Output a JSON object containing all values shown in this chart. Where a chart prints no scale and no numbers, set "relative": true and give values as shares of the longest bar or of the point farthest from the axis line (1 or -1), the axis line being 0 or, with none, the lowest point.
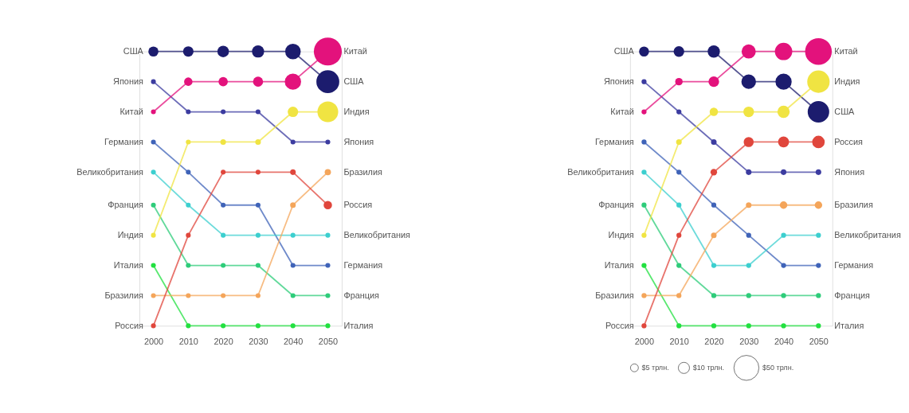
{
  "chart_data": [
    {
      "type": "bubble",
      "relative": true,
      "x": [
        2000,
        2010,
        2020,
        2030,
        2040,
        2050
      ],
      "xlim": [
        1996,
        2054
      ],
      "xticks": [
        2000,
        2010,
        2020,
        2030,
        2040,
        2050
      ],
      "series": [
        {
          "name": "США",
          "color": "#1c1c6e",
          "values": [
            1,
            1,
            1,
            1,
            1,
            0.89
          ],
          "sizes": [
            0.13,
            0.14,
            0.17,
            0.19,
            0.31,
            0.67
          ]
        },
        {
          "name": "Япония",
          "color": "#3c3ca0",
          "values": [
            0.89,
            0.78,
            0.78,
            0.78,
            0.67,
            0.67
          ],
          "sizes": [
            0.03,
            0.03,
            0.03,
            0.03,
            0.03,
            0.03
          ]
        },
        {
          "name": "Китай",
          "color": "#e3127c",
          "values": [
            0.78,
            0.89,
            0.89,
            0.89,
            0.89,
            1
          ],
          "sizes": [
            0.03,
            0.09,
            0.11,
            0.13,
            0.34,
            1
          ]
        },
        {
          "name": "Германия",
          "color": "#3f63b8",
          "values": [
            0.67,
            0.56,
            0.44,
            0.44,
            0.22,
            0.22
          ],
          "sizes": [
            0.03,
            0.03,
            0.03,
            0.03,
            0.03,
            0.03
          ]
        },
        {
          "name": "Великобритания",
          "color": "#3ccfcf",
          "values": [
            0.56,
            0.44,
            0.33,
            0.33,
            0.33,
            0.33
          ],
          "sizes": [
            0.03,
            0.03,
            0.03,
            0.03,
            0.03,
            0.03
          ]
        },
        {
          "name": "Франция",
          "color": "#2ecc7a",
          "values": [
            0.44,
            0.22,
            0.22,
            0.22,
            0.11,
            0.11
          ],
          "sizes": [
            0.03,
            0.03,
            0.03,
            0.03,
            0.03,
            0.03
          ]
        },
        {
          "name": "Индия",
          "color": "#f0e442",
          "values": [
            0.33,
            0.67,
            0.67,
            0.67,
            0.78,
            0.78
          ],
          "sizes": [
            0.03,
            0.03,
            0.04,
            0.04,
            0.14,
            0.55
          ]
        },
        {
          "name": "Италия",
          "color": "#22e040",
          "values": [
            0.22,
            0,
            0,
            0,
            0,
            0
          ],
          "sizes": [
            0.03,
            0.03,
            0.03,
            0.03,
            0.03,
            0.03
          ]
        },
        {
          "name": "Бразилия",
          "color": "#f4a55a",
          "values": [
            0.11,
            0.11,
            0.11,
            0.11,
            0.44,
            0.56
          ],
          "sizes": [
            0.03,
            0.03,
            0.03,
            0.03,
            0.04,
            0.05
          ]
        },
        {
          "name": "Россия",
          "color": "#e0463c",
          "values": [
            0,
            0.33,
            0.56,
            0.56,
            0.56,
            0.44
          ],
          "sizes": [
            0.03,
            0.03,
            0.03,
            0.03,
            0.04,
            0.09
          ]
        }
      ]
    },
    {
      "type": "bubble",
      "relative": true,
      "x": [
        2000,
        2010,
        2020,
        2030,
        2040,
        2050
      ],
      "xlim": [
        1996,
        2054
      ],
      "xticks": [
        2000,
        2010,
        2020,
        2030,
        2040,
        2050
      ],
      "series": [
        {
          "name": "США",
          "color": "#1c1c6e",
          "values": [
            1,
            1,
            1,
            0.89,
            0.89,
            0.78
          ],
          "sizes": [
            8,
            9,
            12,
            17,
            21,
            37
          ]
        },
        {
          "name": "Япония",
          "color": "#3c3ca0",
          "values": [
            0.89,
            0.78,
            0.67,
            0.56,
            0.56,
            0.56
          ],
          "sizes": [
            2,
            2,
            2.5,
            2.5,
            2.5,
            2.5
          ]
        },
        {
          "name": "Китай",
          "color": "#e3127c",
          "values": [
            0.78,
            0.89,
            0.89,
            1,
            1,
            1
          ],
          "sizes": [
            2,
            4.5,
            9,
            16,
            24,
            57
          ]
        },
        {
          "name": "Германия",
          "color": "#3f63b8",
          "values": [
            0.67,
            0.56,
            0.44,
            0.33,
            0.22,
            0.22
          ],
          "sizes": [
            2,
            2,
            2,
            2,
            2,
            2
          ]
        },
        {
          "name": "Великобритания",
          "color": "#3ccfcf",
          "values": [
            0.56,
            0.44,
            0.22,
            0.22,
            0.33,
            0.33
          ],
          "sizes": [
            2,
            2,
            2,
            2,
            2,
            2
          ]
        },
        {
          "name": "Франция",
          "color": "#2ecc7a",
          "values": [
            0.44,
            0.22,
            0.11,
            0.11,
            0.11,
            0.11
          ],
          "sizes": [
            2,
            2,
            2,
            2,
            2,
            2
          ]
        },
        {
          "name": "Индия",
          "color": "#f0e442",
          "values": [
            0.33,
            0.67,
            0.78,
            0.78,
            0.78,
            0.89
          ],
          "sizes": [
            2,
            2.5,
            5.5,
            9,
            12,
            40
          ]
        },
        {
          "name": "Италия",
          "color": "#22e040",
          "values": [
            0.22,
            0,
            0,
            0,
            0,
            0
          ],
          "sizes": [
            2,
            2,
            2,
            2,
            2,
            2
          ]
        },
        {
          "name": "Бразилия",
          "color": "#f4a55a",
          "values": [
            0.11,
            0.11,
            0.33,
            0.44,
            0.44,
            0.44
          ],
          "sizes": [
            2,
            2,
            2.5,
            2.5,
            4.5,
            4.5
          ]
        },
        {
          "name": "Россия",
          "color": "#e0463c",
          "values": [
            0,
            0.33,
            0.56,
            0.67,
            0.67,
            0.67
          ],
          "sizes": [
            2,
            2,
            3.5,
            8,
            9.5,
            12.5
          ]
        }
      ],
      "size_legend": [
        {
          "value": 5,
          "label": "$5 трлн."
        },
        {
          "value": 10,
          "label": "$10 трлн."
        },
        {
          "value": 50,
          "label": "$50 трлн."
        }
      ]
    }
  ]
}
